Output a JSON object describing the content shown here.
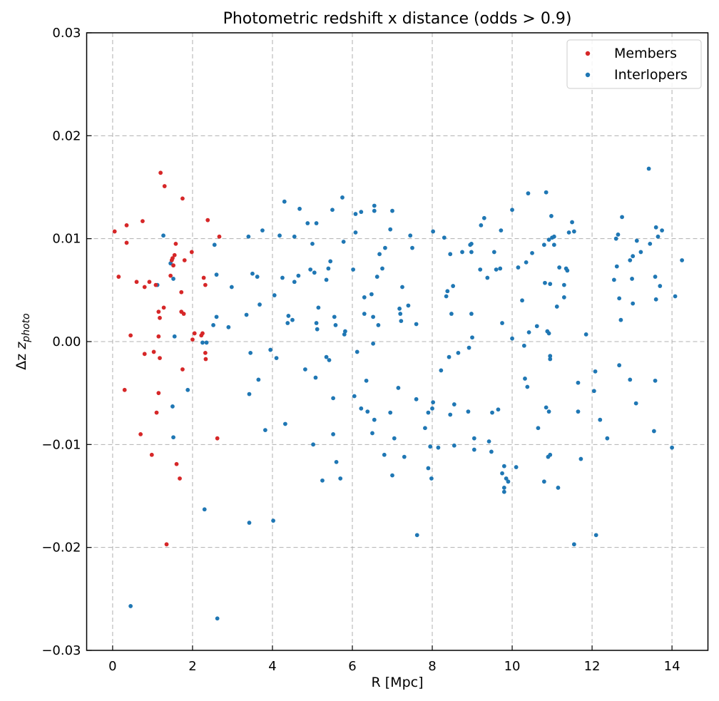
{
  "chart_data": {
    "type": "scatter",
    "title": "Photometric redshift x distance (odds > 0.9)",
    "xlabel": "R [Mpc]",
    "ylabel_main": "Δz",
    "ylabel_sub": "photo",
    "xlim": [
      -0.65,
      14.9
    ],
    "ylim": [
      -0.03,
      0.03
    ],
    "xticks": [
      0,
      2,
      4,
      6,
      8,
      10,
      12,
      14
    ],
    "xtick_labels": [
      "0",
      "2",
      "4",
      "6",
      "8",
      "10",
      "12",
      "14"
    ],
    "yticks": [
      -0.03,
      -0.02,
      -0.01,
      0.0,
      0.01,
      0.02,
      0.03
    ],
    "ytick_labels": [
      "−0.03",
      "−0.02",
      "−0.01",
      "0.00",
      "0.01",
      "0.02",
      "0.03"
    ],
    "grid": true,
    "legend_position": "top-right",
    "series": [
      {
        "name": "Members",
        "color": "#d62728",
        "points": [
          [
            0.05,
            0.0107
          ],
          [
            0.15,
            0.0063
          ],
          [
            0.35,
            0.0113
          ],
          [
            0.35,
            0.0096
          ],
          [
            0.3,
            -0.0047
          ],
          [
            0.45,
            0.0006
          ],
          [
            0.6,
            0.0058
          ],
          [
            0.7,
            -0.009
          ],
          [
            0.75,
            0.0117
          ],
          [
            0.8,
            0.0053
          ],
          [
            0.8,
            -0.0012
          ],
          [
            0.92,
            0.0058
          ],
          [
            0.98,
            -0.011
          ],
          [
            1.03,
            -0.001
          ],
          [
            1.08,
            0.0055
          ],
          [
            1.1,
            -0.0069
          ],
          [
            1.15,
            -0.005
          ],
          [
            1.15,
            0.0029
          ],
          [
            1.15,
            0.0005
          ],
          [
            1.18,
            0.0023
          ],
          [
            1.18,
            -0.0016
          ],
          [
            1.2,
            0.0164
          ],
          [
            1.28,
            0.0033
          ],
          [
            1.3,
            0.0151
          ],
          [
            1.35,
            -0.0197
          ],
          [
            1.45,
            0.0064
          ],
          [
            1.48,
            0.0079
          ],
          [
            1.5,
            0.0081
          ],
          [
            1.52,
            0.0074
          ],
          [
            1.55,
            0.0084
          ],
          [
            1.58,
            0.0095
          ],
          [
            1.6,
            -0.0119
          ],
          [
            1.68,
            -0.0133
          ],
          [
            1.72,
            0.0048
          ],
          [
            1.72,
            0.0029
          ],
          [
            1.75,
            0.0139
          ],
          [
            1.75,
            -0.0027
          ],
          [
            1.78,
            0.0027
          ],
          [
            1.8,
            0.0079
          ],
          [
            1.98,
            0.0087
          ],
          [
            2.0,
            0.0002
          ],
          [
            2.05,
            0.0008
          ],
          [
            2.22,
            0.0006
          ],
          [
            2.25,
            0.0008
          ],
          [
            2.28,
            0.0062
          ],
          [
            2.32,
            0.0055
          ],
          [
            2.32,
            -0.0011
          ],
          [
            2.33,
            -0.0017
          ],
          [
            2.38,
            0.0118
          ],
          [
            2.62,
            -0.0094
          ],
          [
            2.67,
            0.0102
          ]
        ]
      },
      {
        "name": "Interlopers",
        "color": "#1f77b4",
        "points": [
          [
            0.45,
            -0.0257
          ],
          [
            1.12,
            0.0055
          ],
          [
            1.27,
            0.0103
          ],
          [
            1.45,
            0.0076
          ],
          [
            1.5,
            -0.0063
          ],
          [
            1.52,
            -0.0093
          ],
          [
            1.52,
            0.0061
          ],
          [
            1.55,
            0.0005
          ],
          [
            1.88,
            -0.0047
          ],
          [
            2.25,
            -0.0001
          ],
          [
            2.3,
            -0.0163
          ],
          [
            2.35,
            -0.0001
          ],
          [
            2.52,
            0.0016
          ],
          [
            2.55,
            0.0094
          ],
          [
            2.6,
            0.0065
          ],
          [
            2.6,
            0.0024
          ],
          [
            2.62,
            -0.0269
          ],
          [
            2.9,
            0.0014
          ],
          [
            2.98,
            0.0053
          ],
          [
            3.35,
            0.0026
          ],
          [
            3.4,
            0.0102
          ],
          [
            3.42,
            -0.0051
          ],
          [
            3.42,
            -0.0176
          ],
          [
            3.45,
            -0.0011
          ],
          [
            3.5,
            0.0066
          ],
          [
            3.62,
            0.0063
          ],
          [
            3.65,
            -0.0037
          ],
          [
            3.68,
            0.0036
          ],
          [
            3.75,
            0.0108
          ],
          [
            3.82,
            -0.0086
          ],
          [
            3.95,
            -0.0008
          ],
          [
            4.02,
            -0.0174
          ],
          [
            4.05,
            0.0045
          ],
          [
            4.1,
            -0.0016
          ],
          [
            4.18,
            0.0103
          ],
          [
            4.25,
            0.0062
          ],
          [
            4.3,
            0.0136
          ],
          [
            4.32,
            -0.008
          ],
          [
            4.38,
            0.0018
          ],
          [
            4.4,
            0.0025
          ],
          [
            4.5,
            0.0021
          ],
          [
            4.55,
            0.0102
          ],
          [
            4.55,
            0.0058
          ],
          [
            4.65,
            0.0064
          ],
          [
            4.68,
            0.0129
          ],
          [
            4.82,
            -0.0027
          ],
          [
            4.88,
            0.0115
          ],
          [
            4.95,
            0.007
          ],
          [
            5.0,
            0.0095
          ],
          [
            5.02,
            -0.01
          ],
          [
            5.05,
            0.0067
          ],
          [
            5.08,
            -0.0035
          ],
          [
            5.1,
            0.0115
          ],
          [
            5.1,
            0.0018
          ],
          [
            5.12,
            0.0012
          ],
          [
            5.15,
            0.0033
          ],
          [
            5.25,
            -0.0135
          ],
          [
            5.35,
            0.006
          ],
          [
            5.35,
            -0.0015
          ],
          [
            5.4,
            0.0071
          ],
          [
            5.42,
            -0.0018
          ],
          [
            5.45,
            0.0078
          ],
          [
            5.5,
            0.0128
          ],
          [
            5.52,
            -0.0055
          ],
          [
            5.52,
            -0.009
          ],
          [
            5.55,
            0.0024
          ],
          [
            5.58,
            0.0016
          ],
          [
            5.6,
            -0.0117
          ],
          [
            5.7,
            -0.0133
          ],
          [
            5.75,
            0.014
          ],
          [
            5.78,
            0.0097
          ],
          [
            5.8,
            0.0007
          ],
          [
            5.82,
            0.001
          ],
          [
            6.02,
            0.007
          ],
          [
            6.05,
            -0.0053
          ],
          [
            6.08,
            0.0106
          ],
          [
            6.08,
            0.0124
          ],
          [
            6.12,
            -0.001
          ],
          [
            6.22,
            0.0126
          ],
          [
            6.22,
            -0.0065
          ],
          [
            6.3,
            0.0043
          ],
          [
            6.3,
            0.0027
          ],
          [
            6.35,
            -0.0038
          ],
          [
            6.38,
            -0.0068
          ],
          [
            6.48,
            0.0046
          ],
          [
            6.5,
            -0.0089
          ],
          [
            6.52,
            0.0024
          ],
          [
            6.52,
            -0.0002
          ],
          [
            6.55,
            0.0127
          ],
          [
            6.55,
            0.0132
          ],
          [
            6.55,
            -0.0076
          ],
          [
            6.62,
            0.0063
          ],
          [
            6.65,
            0.0016
          ],
          [
            6.68,
            0.0085
          ],
          [
            6.75,
            0.0071
          ],
          [
            6.8,
            -0.011
          ],
          [
            6.82,
            0.0091
          ],
          [
            6.95,
            0.0109
          ],
          [
            6.95,
            -0.0069
          ],
          [
            7.0,
            0.0127
          ],
          [
            7.0,
            -0.013
          ],
          [
            7.05,
            -0.0094
          ],
          [
            7.15,
            -0.0045
          ],
          [
            7.18,
            0.0032
          ],
          [
            7.2,
            0.0027
          ],
          [
            7.22,
            0.002
          ],
          [
            7.25,
            0.0053
          ],
          [
            7.3,
            -0.0112
          ],
          [
            7.4,
            0.0035
          ],
          [
            7.45,
            0.0103
          ],
          [
            7.5,
            0.0091
          ],
          [
            7.6,
            -0.0056
          ],
          [
            7.6,
            0.0017
          ],
          [
            7.62,
            -0.0188
          ],
          [
            7.82,
            -0.0084
          ],
          [
            7.9,
            -0.0069
          ],
          [
            7.9,
            -0.0123
          ],
          [
            7.95,
            -0.0102
          ],
          [
            7.98,
            -0.0133
          ],
          [
            8.0,
            -0.0065
          ],
          [
            8.02,
            -0.0059
          ],
          [
            8.02,
            0.0107
          ],
          [
            8.15,
            -0.0103
          ],
          [
            8.22,
            -0.0028
          ],
          [
            8.3,
            0.0101
          ],
          [
            8.35,
            0.0044
          ],
          [
            8.38,
            0.0049
          ],
          [
            8.42,
            -0.0015
          ],
          [
            8.45,
            -0.0071
          ],
          [
            8.45,
            0.0085
          ],
          [
            8.48,
            0.0027
          ],
          [
            8.52,
            0.0054
          ],
          [
            8.55,
            -0.0061
          ],
          [
            8.55,
            -0.0101
          ],
          [
            8.65,
            -0.0011
          ],
          [
            8.75,
            0.0087
          ],
          [
            8.9,
            -0.0068
          ],
          [
            8.92,
            -0.0006
          ],
          [
            8.95,
            0.0094
          ],
          [
            8.98,
            0.0095
          ],
          [
            8.98,
            0.0087
          ],
          [
            8.98,
            0.0027
          ],
          [
            9.0,
            0.0004
          ],
          [
            9.05,
            -0.0094
          ],
          [
            9.05,
            -0.0105
          ],
          [
            9.2,
            0.007
          ],
          [
            9.22,
            0.0113
          ],
          [
            9.3,
            0.012
          ],
          [
            9.38,
            0.0062
          ],
          [
            9.42,
            -0.0097
          ],
          [
            9.48,
            -0.0107
          ],
          [
            9.5,
            -0.0069
          ],
          [
            9.55,
            0.0087
          ],
          [
            9.6,
            0.007
          ],
          [
            9.65,
            -0.0066
          ],
          [
            9.7,
            0.0071
          ],
          [
            9.72,
            0.0108
          ],
          [
            9.75,
            0.0018
          ],
          [
            9.75,
            -0.0128
          ],
          [
            9.8,
            -0.0121
          ],
          [
            9.8,
            -0.0142
          ],
          [
            9.8,
            -0.0146
          ],
          [
            9.85,
            -0.0133
          ],
          [
            9.9,
            -0.0136
          ],
          [
            10.0,
            0.0128
          ],
          [
            10.0,
            0.0003
          ],
          [
            10.1,
            -0.0122
          ],
          [
            10.15,
            0.0072
          ],
          [
            10.25,
            0.004
          ],
          [
            10.3,
            -0.0004
          ],
          [
            10.32,
            -0.0036
          ],
          [
            10.35,
            0.0077
          ],
          [
            10.38,
            -0.0044
          ],
          [
            10.4,
            0.0144
          ],
          [
            10.42,
            0.0009
          ],
          [
            10.5,
            0.0086
          ],
          [
            10.62,
            0.0015
          ],
          [
            10.65,
            -0.0084
          ],
          [
            10.8,
            0.0094
          ],
          [
            10.8,
            -0.0136
          ],
          [
            10.82,
            0.0057
          ],
          [
            10.85,
            -0.0064
          ],
          [
            10.85,
            0.0145
          ],
          [
            10.88,
            0.001
          ],
          [
            10.9,
            -0.0112
          ],
          [
            10.92,
            0.0099
          ],
          [
            10.92,
            -0.0068
          ],
          [
            10.92,
            0.0008
          ],
          [
            10.95,
            0.0056
          ],
          [
            10.95,
            -0.0014
          ],
          [
            10.95,
            -0.0017
          ],
          [
            10.95,
            -0.011
          ],
          [
            10.98,
            0.0122
          ],
          [
            11.0,
            0.0101
          ],
          [
            11.05,
            0.0102
          ],
          [
            11.05,
            0.0094
          ],
          [
            11.12,
            0.0034
          ],
          [
            11.15,
            -0.0142
          ],
          [
            11.18,
            0.0072
          ],
          [
            11.3,
            0.0055
          ],
          [
            11.3,
            0.0043
          ],
          [
            11.35,
            0.0071
          ],
          [
            11.38,
            0.0069
          ],
          [
            11.42,
            0.0106
          ],
          [
            11.5,
            0.0116
          ],
          [
            11.55,
            0.0107
          ],
          [
            11.55,
            -0.0197
          ],
          [
            11.65,
            -0.004
          ],
          [
            11.65,
            -0.0068
          ],
          [
            11.72,
            -0.0114
          ],
          [
            11.85,
            0.0007
          ],
          [
            12.05,
            -0.0048
          ],
          [
            12.08,
            -0.0029
          ],
          [
            12.1,
            -0.0188
          ],
          [
            12.2,
            -0.0076
          ],
          [
            12.38,
            -0.0094
          ],
          [
            12.55,
            0.006
          ],
          [
            12.6,
            0.01
          ],
          [
            12.62,
            0.0073
          ],
          [
            12.65,
            0.0104
          ],
          [
            12.68,
            0.0042
          ],
          [
            12.68,
            -0.0023
          ],
          [
            12.72,
            0.0021
          ],
          [
            12.75,
            0.0121
          ],
          [
            12.95,
            0.0079
          ],
          [
            12.95,
            -0.0037
          ],
          [
            13.0,
            0.0061
          ],
          [
            13.02,
            0.0083
          ],
          [
            13.02,
            0.0037
          ],
          [
            13.1,
            -0.006
          ],
          [
            13.12,
            0.0098
          ],
          [
            13.22,
            0.0087
          ],
          [
            13.42,
            0.0168
          ],
          [
            13.45,
            0.0095
          ],
          [
            13.55,
            -0.0087
          ],
          [
            13.58,
            -0.0038
          ],
          [
            13.58,
            0.0063
          ],
          [
            13.6,
            0.0111
          ],
          [
            13.6,
            0.0041
          ],
          [
            13.65,
            0.0102
          ],
          [
            13.7,
            0.0054
          ],
          [
            13.75,
            0.0108
          ],
          [
            14.0,
            -0.0103
          ],
          [
            14.08,
            0.0044
          ],
          [
            14.25,
            0.0079
          ]
        ]
      }
    ]
  }
}
